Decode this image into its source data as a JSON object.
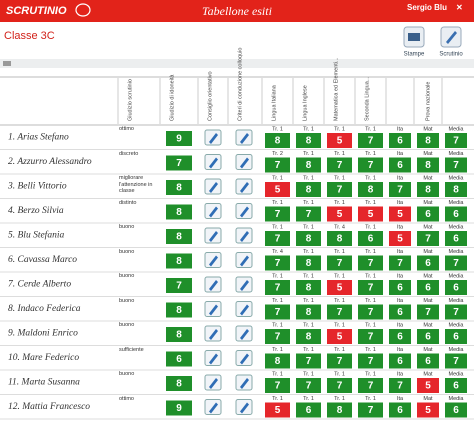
{
  "header": {
    "logo": "SCRUTINIO",
    "title": "Tabellone esiti",
    "user": "Sergio Blu"
  },
  "class_name": "Classe 3C",
  "toolbar": [
    "Stampe",
    "Scrutinio"
  ],
  "columns": {
    "judgment": "Giudizio scrutinio",
    "eligibility": "Giudizio di idoneità",
    "guidance": "Consiglio orientativo",
    "interview": "Criteri di conduzione colloquio",
    "subjects": [
      "Lingua Italiana",
      "Lingua Inglese",
      "Matematica ed Elementi...",
      "Seconda Lingua..."
    ],
    "exam": "Prova nazionale",
    "exam_parts": [
      "Ita",
      "Mat",
      "Media"
    ]
  },
  "rows": [
    {
      "name": "1. Arias Stefano",
      "judgment": "ottimo",
      "eligibility": 9,
      "subjects": [
        {
          "term": "Tr. 1",
          "grade": 8,
          "color": "#1f8f2a"
        },
        {
          "term": "Tr. 1",
          "grade": 8,
          "color": "#1f8f2a"
        },
        {
          "term": "Tr. 1",
          "grade": 5,
          "color": "#e5262b"
        },
        {
          "term": "Tr. 1",
          "grade": 7,
          "color": "#1f8f2a"
        }
      ],
      "exam": [
        {
          "grade": 6,
          "color": "#1f8f2a"
        },
        {
          "grade": 8,
          "color": "#1f8f2a"
        },
        {
          "grade": 7,
          "color": "#1f8f2a"
        }
      ]
    },
    {
      "name": "2. Azzurro Alessandro",
      "judgment": "discreto",
      "eligibility": 7,
      "subjects": [
        {
          "term": "Tr. 2",
          "grade": 7,
          "color": "#1f8f2a"
        },
        {
          "term": "Tr. 1",
          "grade": 8,
          "color": "#1f8f2a"
        },
        {
          "term": "Tr. 1",
          "grade": 7,
          "color": "#1f8f2a"
        },
        {
          "term": "Tr. 1",
          "grade": 7,
          "color": "#1f8f2a"
        }
      ],
      "exam": [
        {
          "grade": 6,
          "color": "#1f8f2a"
        },
        {
          "grade": 8,
          "color": "#1f8f2a"
        },
        {
          "grade": 7,
          "color": "#1f8f2a"
        }
      ]
    },
    {
      "name": "3. Belli Vittorio",
      "judgment": "migliorare l'attenzione in classe",
      "eligibility": 8,
      "subjects": [
        {
          "term": "Tr. 1",
          "grade": 5,
          "color": "#e5262b"
        },
        {
          "term": "Tr. 1",
          "grade": 8,
          "color": "#1f8f2a"
        },
        {
          "term": "Tr. 1",
          "grade": 7,
          "color": "#1f8f2a"
        },
        {
          "term": "Tr. 1",
          "grade": 8,
          "color": "#1f8f2a"
        }
      ],
      "exam": [
        {
          "grade": 7,
          "color": "#1f8f2a"
        },
        {
          "grade": 8,
          "color": "#1f8f2a"
        },
        {
          "grade": 8,
          "color": "#1f8f2a"
        }
      ]
    },
    {
      "name": "4. Berzo Silvia",
      "judgment": "distinto",
      "eligibility": 8,
      "subjects": [
        {
          "term": "Tr. 1",
          "grade": 7,
          "color": "#1f8f2a"
        },
        {
          "term": "Tr. 1",
          "grade": 7,
          "color": "#1f8f2a"
        },
        {
          "term": "Tr. 1",
          "grade": 5,
          "color": "#e5262b"
        },
        {
          "term": "Tr. 1",
          "grade": 5,
          "color": "#e5262b"
        }
      ],
      "exam": [
        {
          "grade": 5,
          "color": "#e5262b"
        },
        {
          "grade": 6,
          "color": "#1f8f2a"
        },
        {
          "grade": 6,
          "color": "#1f8f2a"
        }
      ]
    },
    {
      "name": "5. Blu Stefania",
      "judgment": "buono",
      "eligibility": 8,
      "subjects": [
        {
          "term": "Tr. 1",
          "grade": 7,
          "color": "#1f8f2a"
        },
        {
          "term": "Tr. 1",
          "grade": 8,
          "color": "#1f8f2a"
        },
        {
          "term": "Tr. 4",
          "grade": 8,
          "color": "#1f8f2a"
        },
        {
          "term": "Tr. 1",
          "grade": 6,
          "color": "#1f8f2a"
        }
      ],
      "exam": [
        {
          "grade": 5,
          "color": "#e5262b"
        },
        {
          "grade": 7,
          "color": "#1f8f2a"
        },
        {
          "grade": 6,
          "color": "#1f8f2a"
        }
      ]
    },
    {
      "name": "6. Cavassa Marco",
      "judgment": "buono",
      "eligibility": 8,
      "subjects": [
        {
          "term": "Tr. 4",
          "grade": 7,
          "color": "#1f8f2a"
        },
        {
          "term": "Tr. 1",
          "grade": 8,
          "color": "#1f8f2a"
        },
        {
          "term": "Tr. 1",
          "grade": 7,
          "color": "#1f8f2a"
        },
        {
          "term": "Tr. 1",
          "grade": 7,
          "color": "#1f8f2a"
        }
      ],
      "exam": [
        {
          "grade": 7,
          "color": "#1f8f2a"
        },
        {
          "grade": 6,
          "color": "#1f8f2a"
        },
        {
          "grade": 7,
          "color": "#1f8f2a"
        }
      ]
    },
    {
      "name": "7. Cerde Alberto",
      "judgment": "buono",
      "eligibility": 7,
      "subjects": [
        {
          "term": "Tr. 1",
          "grade": 7,
          "color": "#1f8f2a"
        },
        {
          "term": "Tr. 1",
          "grade": 8,
          "color": "#1f8f2a"
        },
        {
          "term": "Tr. 1",
          "grade": 5,
          "color": "#e5262b"
        },
        {
          "term": "Tr. 1",
          "grade": 7,
          "color": "#1f8f2a"
        }
      ],
      "exam": [
        {
          "grade": 6,
          "color": "#1f8f2a"
        },
        {
          "grade": 6,
          "color": "#1f8f2a"
        },
        {
          "grade": 6,
          "color": "#1f8f2a"
        }
      ]
    },
    {
      "name": "8. Indaco Federica",
      "judgment": "buono",
      "eligibility": 8,
      "subjects": [
        {
          "term": "Tr. 1",
          "grade": 7,
          "color": "#1f8f2a"
        },
        {
          "term": "Tr. 1",
          "grade": 8,
          "color": "#1f8f2a"
        },
        {
          "term": "Tr. 1",
          "grade": 7,
          "color": "#1f8f2a"
        },
        {
          "term": "Tr. 1",
          "grade": 7,
          "color": "#1f8f2a"
        }
      ],
      "exam": [
        {
          "grade": 6,
          "color": "#1f8f2a"
        },
        {
          "grade": 7,
          "color": "#1f8f2a"
        },
        {
          "grade": 7,
          "color": "#1f8f2a"
        }
      ]
    },
    {
      "name": "9. Maldoni Enrico",
      "judgment": "buono",
      "eligibility": 8,
      "subjects": [
        {
          "term": "Tr. 1",
          "grade": 7,
          "color": "#1f8f2a"
        },
        {
          "term": "Tr. 1",
          "grade": 8,
          "color": "#1f8f2a"
        },
        {
          "term": "Tr. 1",
          "grade": 5,
          "color": "#e5262b"
        },
        {
          "term": "Tr. 1",
          "grade": 7,
          "color": "#1f8f2a"
        }
      ],
      "exam": [
        {
          "grade": 6,
          "color": "#1f8f2a"
        },
        {
          "grade": 6,
          "color": "#1f8f2a"
        },
        {
          "grade": 6,
          "color": "#1f8f2a"
        }
      ]
    },
    {
      "name": "10. Mare Federico",
      "judgment": "sufficiente",
      "eligibility": 6,
      "subjects": [
        {
          "term": "Tr. 1",
          "grade": 8,
          "color": "#1f8f2a"
        },
        {
          "term": "Tr. 1",
          "grade": 7,
          "color": "#1f8f2a"
        },
        {
          "term": "Tr. 1",
          "grade": 7,
          "color": "#1f8f2a"
        },
        {
          "term": "Tr. 1",
          "grade": 7,
          "color": "#1f8f2a"
        }
      ],
      "exam": [
        {
          "grade": 6,
          "color": "#1f8f2a"
        },
        {
          "grade": 6,
          "color": "#1f8f2a"
        },
        {
          "grade": 7,
          "color": "#1f8f2a"
        }
      ]
    },
    {
      "name": "11. Marta Susanna",
      "judgment": "buono",
      "eligibility": 8,
      "subjects": [
        {
          "term": "Tr. 1",
          "grade": 7,
          "color": "#1f8f2a"
        },
        {
          "term": "Tr. 1",
          "grade": 7,
          "color": "#1f8f2a"
        },
        {
          "term": "Tr. 1",
          "grade": 7,
          "color": "#1f8f2a"
        },
        {
          "term": "Tr. 1",
          "grade": 7,
          "color": "#1f8f2a"
        }
      ],
      "exam": [
        {
          "grade": 7,
          "color": "#1f8f2a"
        },
        {
          "grade": 5,
          "color": "#e5262b"
        },
        {
          "grade": 6,
          "color": "#1f8f2a"
        }
      ]
    },
    {
      "name": "12. Mattia Francesco",
      "judgment": "ottimo",
      "eligibility": 9,
      "subjects": [
        {
          "term": "Tr. 1",
          "grade": 5,
          "color": "#e5262b"
        },
        {
          "term": "Tr. 1",
          "grade": 6,
          "color": "#1f8f2a"
        },
        {
          "term": "Tr. 1",
          "grade": 8,
          "color": "#1f8f2a"
        },
        {
          "term": "Tr. 1",
          "grade": 7,
          "color": "#1f8f2a"
        }
      ],
      "exam": [
        {
          "grade": 6,
          "color": "#1f8f2a"
        },
        {
          "grade": 5,
          "color": "#e5262b"
        },
        {
          "grade": 6,
          "color": "#1f8f2a"
        }
      ]
    }
  ]
}
